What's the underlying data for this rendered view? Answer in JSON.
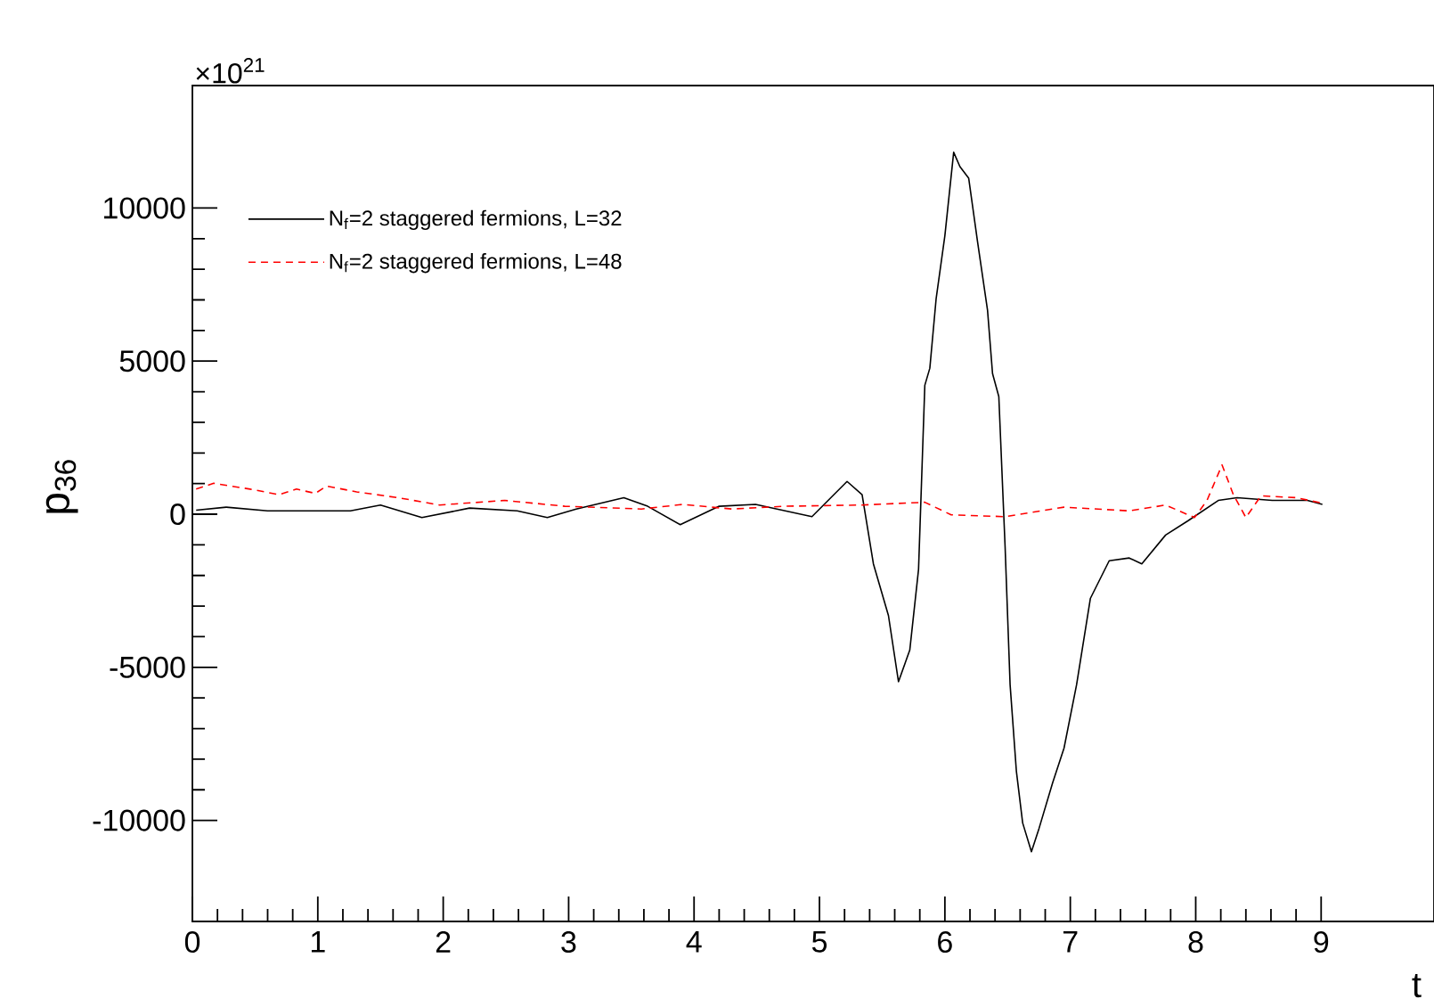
{
  "chart_data": {
    "type": "line",
    "xlabel": "t",
    "ylabel": "p$_{36}$",
    "annotations": [
      "×10$^{21}$"
    ],
    "xlim": [
      0,
      9.9
    ],
    "ylim": [
      -13300,
      14000
    ],
    "xticks": [
      0,
      1,
      2,
      3,
      4,
      5,
      6,
      7,
      8,
      9
    ],
    "yticks": [
      -10000,
      -5000,
      0,
      5000,
      10000
    ],
    "legend": "top left",
    "series": [
      {
        "name": "N$_{f}$=2 staggered fermions, L=32",
        "color": "#000000",
        "line_style": "solid",
        "x": [
          0.03,
          0.27,
          0.6,
          1.26,
          1.5,
          1.83,
          2.21,
          2.59,
          2.83,
          3.06,
          3.44,
          3.63,
          3.89,
          4.2,
          4.49,
          4.94,
          5.22,
          5.34,
          5.43,
          5.55,
          5.63,
          5.72,
          5.79,
          5.84,
          5.88,
          5.93,
          6.0,
          6.07,
          6.12,
          6.19,
          6.26,
          6.34,
          6.38,
          6.43,
          6.48,
          6.52,
          6.57,
          6.62,
          6.69,
          6.75,
          6.86,
          6.95,
          7.05,
          7.16,
          7.31,
          7.47,
          7.57,
          7.76,
          7.94,
          8.18,
          8.33,
          8.61,
          8.89,
          9.01
        ],
        "values": [
          130,
          230,
          110,
          110,
          300,
          -110,
          200,
          110,
          -110,
          170,
          540,
          260,
          -340,
          260,
          320,
          -80,
          1070,
          640,
          -1620,
          -3310,
          -5470,
          -4440,
          -1800,
          4210,
          4770,
          7030,
          9100,
          11820,
          11350,
          10970,
          8910,
          6660,
          4590,
          3840,
          -1050,
          -5570,
          -8390,
          -10080,
          -11020,
          -10270,
          -8760,
          -7640,
          -5570,
          -2750,
          -1520,
          -1430,
          -1620,
          -680,
          -210,
          450,
          540,
          450,
          450,
          320
        ]
      },
      {
        "name": "N$_{f}$=2 staggered fermions, L=48",
        "color": "#ff0000",
        "line_style": "dashed",
        "x": [
          0.03,
          0.17,
          0.46,
          0.69,
          0.83,
          0.98,
          1.07,
          1.31,
          1.64,
          1.97,
          2.49,
          2.97,
          3.58,
          3.91,
          4.3,
          4.72,
          5.34,
          5.84,
          6.05,
          6.48,
          6.95,
          7.47,
          7.76,
          7.99,
          8.09,
          8.21,
          8.3,
          8.4,
          8.52,
          8.8,
          9.01
        ],
        "values": [
          820,
          1010,
          820,
          640,
          820,
          680,
          920,
          730,
          540,
          300,
          450,
          260,
          170,
          320,
          170,
          260,
          300,
          390,
          -20,
          -80,
          230,
          110,
          300,
          -110,
          450,
          1610,
          640,
          -110,
          600,
          540,
          360
        ]
      }
    ]
  }
}
